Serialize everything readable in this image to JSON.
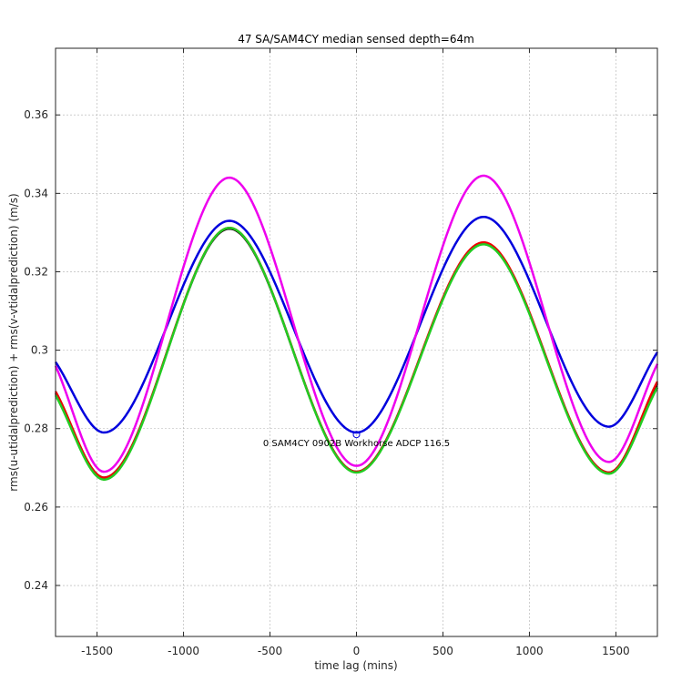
{
  "chart_data": {
    "type": "line",
    "title": "47 SA/SAM4CY median sensed depth=64m",
    "xlabel": "time lag (mins)",
    "ylabel": "rms(u-utidalprediction) + rms(v-vtidalprediction) (m/s)",
    "xlim": [
      -1740,
      1740
    ],
    "ylim": [
      0.227,
      0.377
    ],
    "xticks": [
      -1500,
      -1000,
      -500,
      0,
      500,
      1000,
      1500
    ],
    "xtick_labels": [
      "-1500",
      "-1000",
      "-500",
      "0",
      "500",
      "1000",
      "1500"
    ],
    "yticks": [
      0.24,
      0.26,
      0.28,
      0.3,
      0.32,
      0.34,
      0.36
    ],
    "ytick_labels": [
      "0.24",
      "0.26",
      "0.28",
      "0.3",
      "0.32",
      "0.34",
      "0.36"
    ],
    "grid": true,
    "series": [
      {
        "name": "blue",
        "color": "#0000dd",
        "x": [
          -1740,
          -1460,
          -735,
          0,
          735,
          1460,
          1740
        ],
        "y": [
          0.297,
          0.279,
          0.333,
          0.279,
          0.334,
          0.2805,
          0.2995
        ]
      },
      {
        "name": "magenta",
        "color": "#ee00ee",
        "x": [
          -1740,
          -1460,
          -735,
          0,
          735,
          1460,
          1740
        ],
        "y": [
          0.296,
          0.269,
          0.344,
          0.2705,
          0.3445,
          0.2715,
          0.2965
        ]
      },
      {
        "name": "black",
        "color": "#000000",
        "x": [
          -1740,
          -1460,
          -735,
          0,
          735,
          1460,
          1740
        ],
        "y": [
          0.289,
          0.2675,
          0.331,
          0.269,
          0.3272,
          0.2688,
          0.2915
        ]
      },
      {
        "name": "red",
        "color": "#ee0000",
        "x": [
          -1740,
          -1460,
          -735,
          0,
          735,
          1460,
          1740
        ],
        "y": [
          0.2895,
          0.2675,
          0.3312,
          0.269,
          0.3275,
          0.2688,
          0.292
        ]
      },
      {
        "name": "green",
        "color": "#22cc22",
        "x": [
          -1740,
          -1460,
          -735,
          0,
          735,
          1460,
          1740
        ],
        "y": [
          0.2885,
          0.267,
          0.3312,
          0.2688,
          0.327,
          0.2685,
          0.2905
        ]
      }
    ],
    "marker": {
      "x": 0,
      "y": 0.2785,
      "shape": "circle",
      "color": "#0000dd"
    },
    "annotation": {
      "text": "0 SAM4CY 0902B Workhorse ADCP 116.5",
      "x": 0,
      "y": 0.2765
    }
  }
}
